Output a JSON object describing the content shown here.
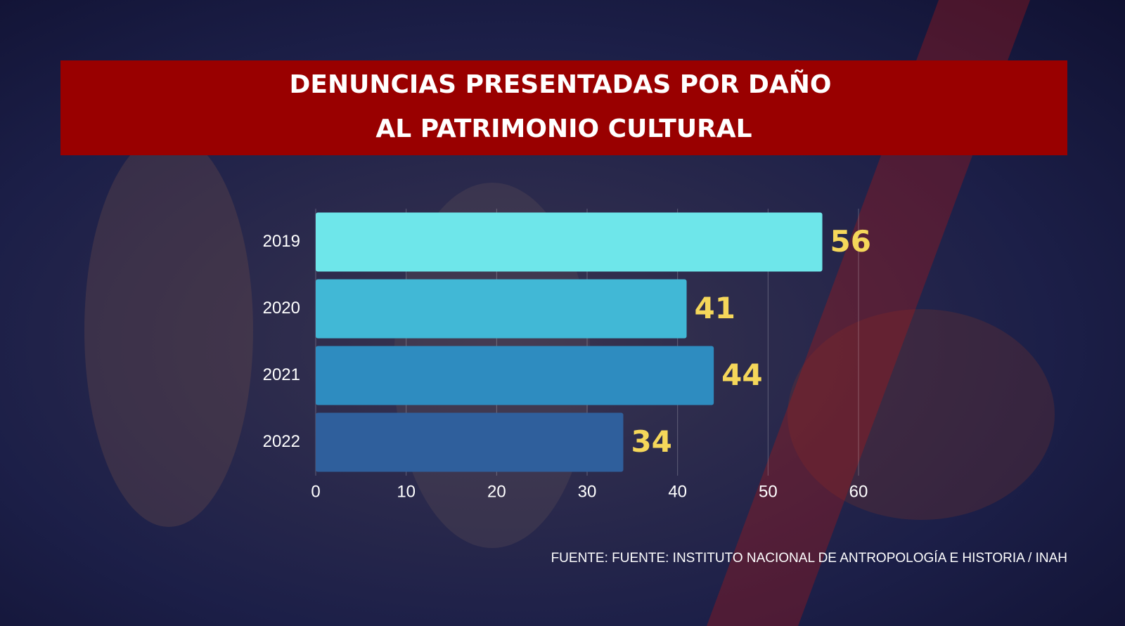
{
  "chart_data": {
    "type": "bar",
    "orientation": "horizontal",
    "title": [
      "DENUNCIAS PRESENTADAS POR DAÑO",
      "AL PATRIMONIO CULTURAL"
    ],
    "categories": [
      "2019",
      "2020",
      "2021",
      "2022"
    ],
    "values": [
      56,
      41,
      44,
      34
    ],
    "colors": [
      "#6ee6ea",
      "#41b8d6",
      "#2e8cc0",
      "#2f5f9c"
    ],
    "xlim": [
      0,
      60
    ],
    "xticks": [
      0,
      10,
      20,
      30,
      40,
      50,
      60
    ],
    "grid": true,
    "source": "FUENTE: FUENTE: INSTITUTO NACIONAL DE ANTROPOLOGÍA E HISTORIA / INAH"
  }
}
